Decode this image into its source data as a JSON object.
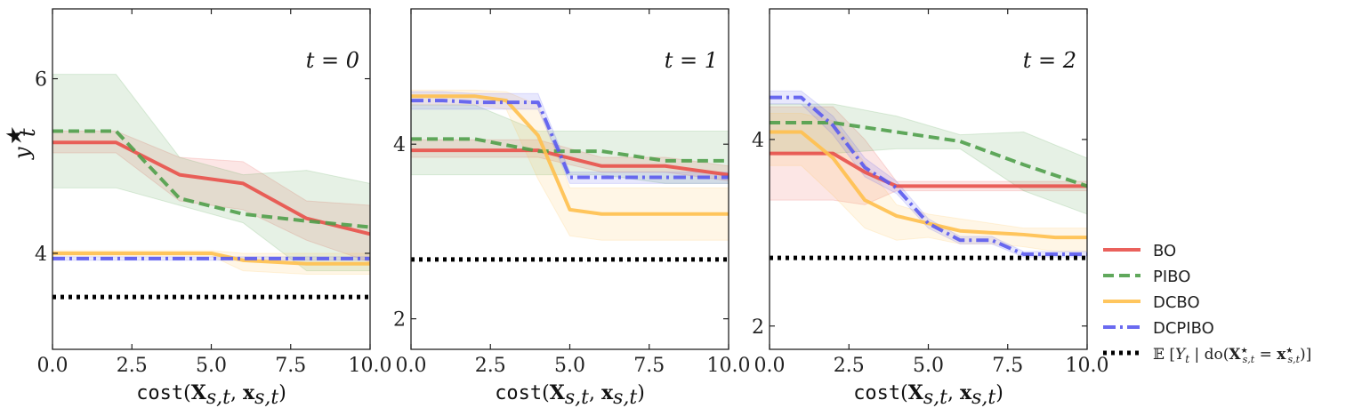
{
  "chart_data": [
    {
      "type": "line",
      "title": "t = 0",
      "xlabel": "cost(X_{s,t}, x_{s,t})",
      "ylabel": "y_t*",
      "xlim": [
        0,
        10
      ],
      "ylim": [
        2.9,
        6.8
      ],
      "xticks": [
        "0.0",
        "2.5",
        "5.0",
        "7.5",
        "10.0"
      ],
      "yticks": [
        {
          "value": 4,
          "label": "4"
        },
        {
          "value": 6,
          "label": "6"
        }
      ],
      "grid": false,
      "series": [
        {
          "name": "BO",
          "x": [
            0,
            2,
            4,
            6,
            8,
            10
          ],
          "y": [
            5.27,
            5.27,
            4.9,
            4.8,
            4.4,
            4.22
          ],
          "lower": [
            5.15,
            5.15,
            4.6,
            4.5,
            4.15,
            3.9
          ],
          "upper": [
            5.4,
            5.4,
            5.1,
            5.05,
            4.6,
            4.55
          ]
        },
        {
          "name": "PIBO",
          "x": [
            0,
            2,
            4,
            6,
            8,
            10
          ],
          "y": [
            5.4,
            5.4,
            4.63,
            4.45,
            4.37,
            4.3
          ],
          "lower": [
            4.75,
            4.75,
            4.55,
            4.35,
            3.8,
            3.8
          ],
          "upper": [
            6.05,
            6.05,
            5.1,
            4.9,
            4.95,
            4.8
          ]
        },
        {
          "name": "DCBO",
          "x": [
            0,
            2,
            4,
            5,
            6,
            8,
            10
          ],
          "y": [
            4.0,
            4.0,
            4.0,
            4.0,
            3.92,
            3.88,
            3.88
          ],
          "lower": [
            3.97,
            3.97,
            3.97,
            3.97,
            3.8,
            3.76,
            3.76
          ],
          "upper": [
            4.03,
            4.03,
            4.03,
            4.03,
            4.0,
            4.0,
            4.0
          ]
        },
        {
          "name": "DCPIBO",
          "x": [
            0,
            2,
            4,
            6,
            8,
            10
          ],
          "y": [
            3.94,
            3.94,
            3.94,
            3.94,
            3.94,
            3.94
          ],
          "lower": [
            3.92,
            3.92,
            3.92,
            3.92,
            3.92,
            3.92
          ],
          "upper": [
            3.96,
            3.96,
            3.96,
            3.96,
            3.96,
            3.96
          ]
        },
        {
          "name": "E[Y_t | do(X*_{s,t} = x*_{s,t})]",
          "x": [
            0,
            10
          ],
          "y": [
            3.5,
            3.5
          ]
        }
      ]
    },
    {
      "type": "line",
      "title": "t = 1",
      "xlabel": "cost(X_{s,t}, x_{s,t})",
      "xlim": [
        0,
        10
      ],
      "ylim": [
        1.65,
        5.55
      ],
      "xticks": [
        "0.0",
        "2.5",
        "5.0",
        "7.5",
        "10.0"
      ],
      "yticks": [
        {
          "value": 2,
          "label": "2"
        },
        {
          "value": 4,
          "label": "4"
        }
      ],
      "grid": false,
      "series": [
        {
          "name": "BO",
          "x": [
            0,
            4,
            6,
            8,
            10
          ],
          "y": [
            3.93,
            3.93,
            3.75,
            3.75,
            3.65
          ],
          "lower": [
            3.85,
            3.85,
            3.68,
            3.68,
            3.58
          ],
          "upper": [
            4.05,
            4.05,
            3.85,
            3.85,
            3.75
          ]
        },
        {
          "name": "PIBO",
          "x": [
            0,
            2,
            4,
            6,
            8,
            10
          ],
          "y": [
            4.06,
            4.06,
            3.92,
            3.92,
            3.81,
            3.81
          ],
          "lower": [
            3.65,
            3.65,
            3.65,
            3.65,
            3.55,
            3.55
          ],
          "upper": [
            4.45,
            4.45,
            4.15,
            4.15,
            4.15,
            4.15
          ]
        },
        {
          "name": "DCBO",
          "x": [
            0,
            2,
            3,
            4,
            5,
            6,
            8,
            10
          ],
          "y": [
            4.55,
            4.55,
            4.5,
            4.1,
            3.25,
            3.2,
            3.2,
            3.2
          ],
          "lower": [
            4.45,
            4.45,
            4.4,
            3.6,
            2.95,
            2.9,
            2.9,
            2.9
          ],
          "upper": [
            4.62,
            4.62,
            4.6,
            4.45,
            3.5,
            3.5,
            3.5,
            3.5
          ]
        },
        {
          "name": "DCPIBO",
          "x": [
            0,
            1,
            2,
            3,
            4,
            5,
            6,
            8,
            10
          ],
          "y": [
            4.5,
            4.5,
            4.48,
            4.48,
            4.48,
            3.62,
            3.62,
            3.62,
            3.62
          ],
          "lower": [
            4.4,
            4.4,
            4.4,
            4.4,
            4.4,
            3.55,
            3.55,
            3.55,
            3.55
          ],
          "upper": [
            4.6,
            4.6,
            4.58,
            4.58,
            4.58,
            3.68,
            3.68,
            3.68,
            3.68
          ]
        },
        {
          "name": "E[Y_t | do(X*_{s,t} = x*_{s,t})]",
          "x": [
            0,
            10
          ],
          "y": [
            2.68,
            2.68
          ]
        }
      ]
    },
    {
      "type": "line",
      "title": "t = 2",
      "xlabel": "cost(X_{s,t}, x_{s,t})",
      "xlim": [
        0,
        10
      ],
      "ylim": [
        1.75,
        5.4
      ],
      "xticks": [
        "0.0",
        "2.5",
        "5.0",
        "7.5",
        "10.0"
      ],
      "yticks": [
        {
          "value": 2,
          "label": "2"
        },
        {
          "value": 4,
          "label": "4"
        }
      ],
      "grid": false,
      "series": [
        {
          "name": "BO",
          "x": [
            0,
            2,
            3,
            4,
            6,
            8,
            10
          ],
          "y": [
            3.85,
            3.85,
            3.65,
            3.5,
            3.5,
            3.5,
            3.5
          ],
          "lower": [
            3.35,
            3.35,
            3.3,
            3.45,
            3.45,
            3.45,
            3.45
          ],
          "upper": [
            4.35,
            4.35,
            4.0,
            3.55,
            3.55,
            3.55,
            3.55
          ]
        },
        {
          "name": "PIBO",
          "x": [
            0,
            2,
            4,
            6,
            8,
            10
          ],
          "y": [
            4.18,
            4.18,
            4.08,
            3.98,
            3.73,
            3.5
          ],
          "lower": [
            3.85,
            3.85,
            3.9,
            3.9,
            3.45,
            3.2
          ],
          "upper": [
            4.38,
            4.38,
            4.25,
            4.05,
            4.08,
            3.8
          ]
        },
        {
          "name": "DCBO",
          "x": [
            0,
            1,
            2,
            3,
            4,
            5,
            6,
            7,
            8,
            9,
            10
          ],
          "y": [
            4.08,
            4.08,
            3.8,
            3.35,
            3.18,
            3.1,
            3.02,
            3.0,
            2.98,
            2.95,
            2.95
          ],
          "lower": [
            3.72,
            3.72,
            3.4,
            3.05,
            2.92,
            2.95,
            2.88,
            2.88,
            2.85,
            2.8,
            2.8
          ],
          "upper": [
            4.28,
            4.28,
            4.2,
            3.75,
            3.3,
            3.2,
            3.15,
            3.1,
            3.05,
            3.05,
            3.05
          ]
        },
        {
          "name": "DCPIBO",
          "x": [
            0,
            1,
            2,
            3,
            4,
            5,
            6,
            7,
            8,
            9,
            10
          ],
          "y": [
            4.45,
            4.45,
            4.15,
            3.7,
            3.48,
            3.1,
            2.92,
            2.92,
            2.77,
            2.77,
            2.77
          ],
          "lower": [
            4.38,
            4.38,
            4.05,
            3.6,
            3.42,
            3.05,
            2.88,
            2.88,
            2.74,
            2.74,
            2.74
          ],
          "upper": [
            4.52,
            4.52,
            4.25,
            3.8,
            3.55,
            3.15,
            2.96,
            2.96,
            2.8,
            2.8,
            2.8
          ]
        },
        {
          "name": "E[Y_t | do(X*_{s,t} = x*_{s,t})]",
          "x": [
            0,
            10
          ],
          "y": [
            2.73,
            2.73
          ]
        }
      ]
    }
  ],
  "legend": {
    "placement": "right",
    "entries": [
      {
        "label": "BO",
        "color": "#e8504a",
        "style": "solid"
      },
      {
        "label": "PIBO",
        "color": "#4f9e4a",
        "style": "dashed"
      },
      {
        "label": "DCBO",
        "color": "#ffc04d",
        "style": "solid"
      },
      {
        "label": "DCPIBO",
        "color": "#5a5aee",
        "style": "dashdot"
      },
      {
        "label": "E [Y_t | do(X*_{s,t} = x*_{s,t})]",
        "color": "#000000",
        "style": "dotted"
      }
    ]
  },
  "colors": {
    "BO": "#e8504a",
    "PIBO": "#4f9e4a",
    "DCBO": "#ffc04d",
    "DCPIBO": "#5a5aee",
    "E[Y_t | do(X*_{s,t} = x*_{s,t})]": "#000000"
  }
}
